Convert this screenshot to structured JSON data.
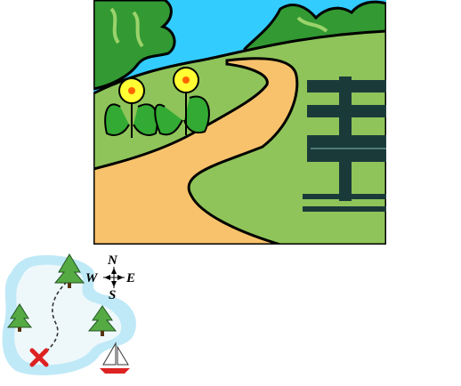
{
  "scene": {
    "sky_color": "#33ccff",
    "grass_color": "#8fc45a",
    "foliage_color": "#339933",
    "path_color": "#f7c26b",
    "flower_color": "#ffff33",
    "sign_color": "#1a3a3a",
    "icons": [
      "trees-icon",
      "path-icon",
      "flower-icon",
      "signpost-icon"
    ]
  },
  "map": {
    "water_color": "#bfe9f7",
    "land_color": "#eef8fb",
    "compass": {
      "north": "N",
      "south": "S",
      "east": "E",
      "west": "W"
    },
    "marker_color": "#dd2222",
    "icons": [
      "pine-tree-icon",
      "treasure-x-icon",
      "sailboat-icon",
      "compass-rose-icon"
    ]
  }
}
